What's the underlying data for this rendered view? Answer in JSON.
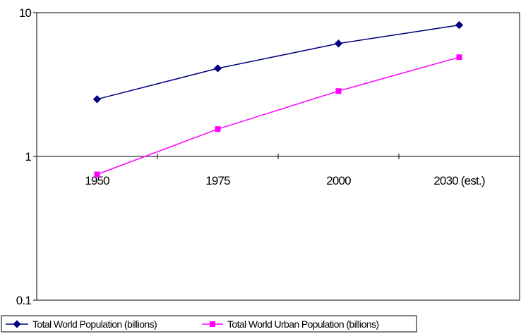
{
  "chart_data": {
    "type": "line",
    "title": "",
    "xlabel": "",
    "ylabel": "",
    "categories": [
      "1950",
      "1975",
      "2000",
      "2030 (est.)"
    ],
    "y_scale": "log",
    "ylim": [
      0.1,
      10
    ],
    "y_ticks": [
      {
        "value": 0.1,
        "label": "0.1"
      },
      {
        "value": 1,
        "label": "1"
      },
      {
        "value": 10,
        "label": "10"
      }
    ],
    "grid": false,
    "legend_position": "bottom",
    "series": [
      {
        "name": "Total World Population (billions)",
        "values": [
          2.5,
          4.1,
          6.1,
          8.2
        ],
        "color": "#000080",
        "marker": "diamond"
      },
      {
        "name": "Total World Urban Population (billions)",
        "values": [
          0.75,
          1.55,
          2.85,
          4.9
        ],
        "color": "#ff00ff",
        "marker": "square"
      }
    ]
  }
}
